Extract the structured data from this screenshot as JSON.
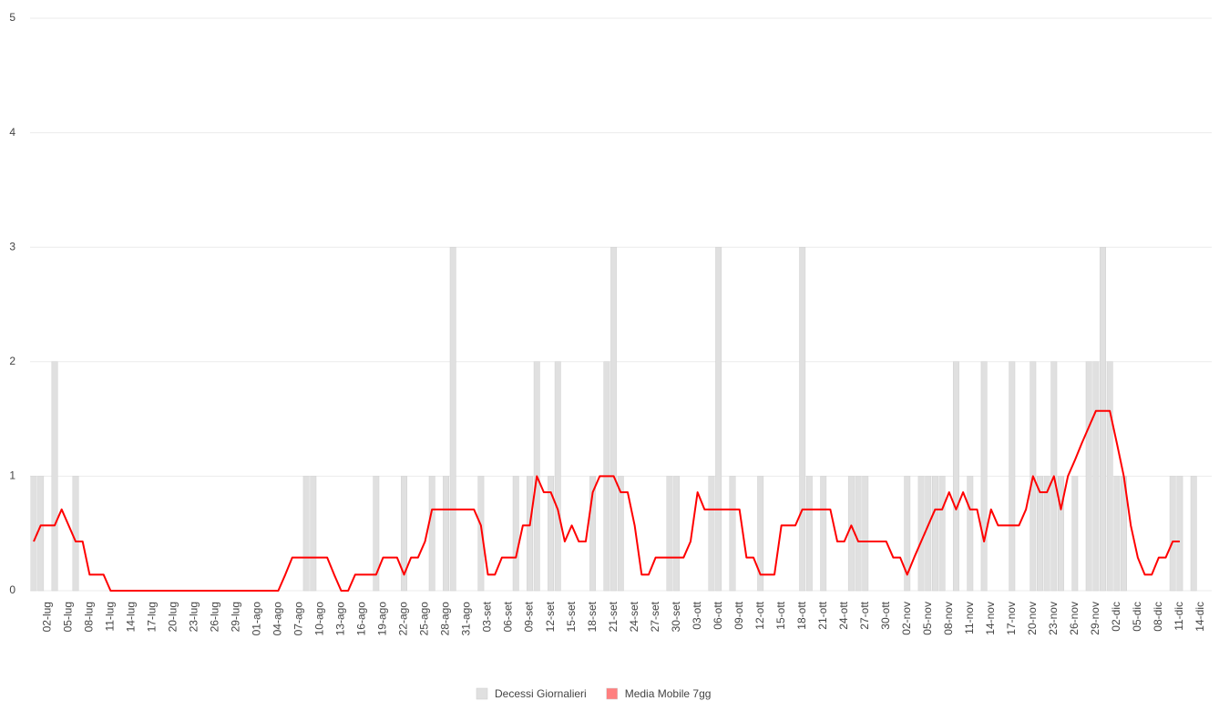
{
  "chart_data": {
    "type": "combo",
    "categories": [
      null,
      null,
      "02-lug",
      null,
      null,
      "05-lug",
      null,
      null,
      "08-lug",
      null,
      null,
      "11-lug",
      null,
      null,
      "14-lug",
      null,
      null,
      "17-lug",
      null,
      null,
      "20-lug",
      null,
      null,
      "23-lug",
      null,
      null,
      "26-lug",
      null,
      null,
      "29-lug",
      null,
      null,
      "01-ago",
      null,
      null,
      "04-ago",
      null,
      null,
      "07-ago",
      null,
      null,
      "10-ago",
      null,
      null,
      "13-ago",
      null,
      null,
      "16-ago",
      null,
      null,
      "19-ago",
      null,
      null,
      "22-ago",
      null,
      null,
      "25-ago",
      null,
      null,
      "28-ago",
      null,
      null,
      "31-ago",
      null,
      null,
      "03-set",
      null,
      null,
      "06-set",
      null,
      null,
      "09-set",
      null,
      null,
      "12-set",
      null,
      null,
      "15-set",
      null,
      null,
      "18-set",
      null,
      null,
      "21-set",
      null,
      null,
      "24-set",
      null,
      null,
      "27-set",
      null,
      null,
      "30-set",
      null,
      null,
      "03-ott",
      null,
      null,
      "06-ott",
      null,
      null,
      "09-ott",
      null,
      null,
      "12-ott",
      null,
      null,
      "15-ott",
      null,
      null,
      "18-ott",
      null,
      null,
      "21-ott",
      null,
      null,
      "24-ott",
      null,
      null,
      "27-ott",
      null,
      null,
      "30-ott",
      null,
      null,
      "02-nov",
      null,
      null,
      "05-nov",
      null,
      null,
      "08-nov",
      null,
      null,
      "11-nov",
      null,
      null,
      "14-nov",
      null,
      null,
      "17-nov",
      null,
      null,
      "20-nov",
      null,
      null,
      "23-nov",
      null,
      null,
      "26-nov",
      null,
      null,
      "29-nov",
      null,
      null,
      "02-dic",
      null,
      null,
      "05-dic",
      null,
      null,
      "08-dic",
      null,
      null,
      "11-dic",
      null,
      null,
      "14-dic"
    ],
    "series": [
      {
        "name": "Decessi Giornalieri",
        "type": "bar",
        "color": "#e0e0e0",
        "values": [
          1,
          1,
          0,
          2,
          0,
          0,
          1,
          0,
          0,
          0,
          0,
          0,
          0,
          0,
          0,
          0,
          0,
          0,
          0,
          0,
          0,
          0,
          0,
          0,
          0,
          0,
          0,
          0,
          0,
          0,
          0,
          0,
          0,
          0,
          0,
          0,
          0,
          0,
          0,
          1,
          1,
          0,
          0,
          0,
          0,
          0,
          0,
          0,
          0,
          1,
          0,
          0,
          0,
          1,
          0,
          0,
          0,
          1,
          0,
          1,
          3,
          0,
          0,
          0,
          1,
          0,
          0,
          0,
          0,
          1,
          0,
          1,
          2,
          0,
          1,
          2,
          0,
          0,
          0,
          0,
          1,
          0,
          2,
          3,
          1,
          0,
          0,
          0,
          0,
          0,
          0,
          1,
          1,
          0,
          0,
          0,
          0,
          1,
          3,
          0,
          1,
          0,
          0,
          0,
          1,
          0,
          0,
          0,
          0,
          0,
          3,
          1,
          0,
          1,
          0,
          0,
          0,
          1,
          1,
          1,
          0,
          0,
          0,
          0,
          0,
          1,
          0,
          1,
          1,
          1,
          1,
          0,
          2,
          0,
          1,
          0,
          2,
          0,
          0,
          0,
          2,
          0,
          0,
          2,
          1,
          1,
          2,
          1,
          0,
          1,
          0,
          2,
          2,
          3,
          2,
          1,
          1,
          0,
          0,
          0,
          0,
          0,
          0,
          1,
          1,
          0,
          1,
          0
        ]
      },
      {
        "name": "Media Mobile 7gg",
        "type": "line",
        "color": "#ff0000",
        "values": [
          0.43,
          0.57,
          0.57,
          0.57,
          0.71,
          0.57,
          0.43,
          0.43,
          0.14,
          0.14,
          0.14,
          0,
          0,
          0,
          0,
          0,
          0,
          0,
          0,
          0,
          0,
          0,
          0,
          0,
          0,
          0,
          0,
          0,
          0,
          0,
          0,
          0,
          0,
          0,
          0,
          0,
          0.14,
          0.29,
          0.29,
          0.29,
          0.29,
          0.29,
          0.29,
          0.14,
          0,
          0,
          0.14,
          0.14,
          0.14,
          0.14,
          0.29,
          0.29,
          0.29,
          0.14,
          0.29,
          0.29,
          0.43,
          0.71,
          0.71,
          0.71,
          0.71,
          0.71,
          0.71,
          0.71,
          0.57,
          0.14,
          0.14,
          0.29,
          0.29,
          0.29,
          0.57,
          0.57,
          1,
          0.86,
          0.86,
          0.71,
          0.43,
          0.57,
          0.43,
          0.43,
          0.86,
          1,
          1,
          1,
          0.86,
          0.86,
          0.57,
          0.14,
          0.14,
          0.29,
          0.29,
          0.29,
          0.29,
          0.29,
          0.43,
          0.86,
          0.71,
          0.71,
          0.71,
          0.71,
          0.71,
          0.71,
          0.29,
          0.29,
          0.14,
          0.14,
          0.14,
          0.57,
          0.57,
          0.57,
          0.71,
          0.71,
          0.71,
          0.71,
          0.71,
          0.43,
          0.43,
          0.57,
          0.43,
          0.43,
          0.43,
          0.43,
          0.43,
          0.29,
          0.29,
          0.14,
          0.29,
          0.43,
          0.57,
          0.71,
          0.71,
          0.86,
          0.71,
          0.86,
          0.71,
          0.71,
          0.43,
          0.71,
          0.57,
          0.57,
          0.57,
          0.57,
          0.71,
          1,
          0.86,
          0.86,
          1,
          0.71,
          1,
          1.14,
          1.29,
          1.43,
          1.57,
          1.57,
          1.57,
          1.29,
          1,
          0.57,
          0.29,
          0.14,
          0.14,
          0.29,
          0.29,
          0.43,
          0.43,
          null,
          null,
          null
        ]
      }
    ],
    "ylim": [
      0,
      5
    ],
    "yticks": [
      0,
      1,
      2,
      3,
      4,
      5
    ],
    "grid": true,
    "legend": "bottom"
  }
}
